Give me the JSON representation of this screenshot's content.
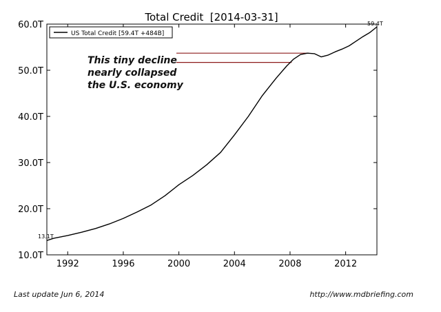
{
  "chart_data": {
    "type": "line",
    "title": "Total Credit  [2014-03-31]",
    "xlabel": "",
    "ylabel": "",
    "xlim": [
      1990.5,
      2014.25
    ],
    "ylim": [
      10,
      60
    ],
    "x_ticks": [
      1992,
      1996,
      2000,
      2004,
      2008,
      2012
    ],
    "x_tick_labels": [
      "1992",
      "1996",
      "2000",
      "2004",
      "2008",
      "2012"
    ],
    "y_ticks": [
      10,
      20,
      30,
      40,
      50,
      60
    ],
    "y_tick_labels": [
      "10.0T",
      "20.0T",
      "30.0T",
      "40.0T",
      "50.0T",
      "60.0T"
    ],
    "legend": {
      "entry": "US Total Credit [59.4T +484B]",
      "placement": "top-left"
    },
    "grid": false,
    "series": [
      {
        "name": "US Total Credit [59.4T +484B]",
        "color": "#000000",
        "x": [
          1990.5,
          1991,
          1992,
          1993,
          1994,
          1995,
          1996,
          1997,
          1998,
          1999,
          2000,
          2001,
          2002,
          2003,
          2004,
          2005,
          2006,
          2007,
          2007.75,
          2008.25,
          2008.75,
          2009.25,
          2009.75,
          2010.25,
          2010.75,
          2011.25,
          2011.75,
          2012.25,
          2012.75,
          2013.25,
          2013.75,
          2014.25
        ],
        "y": [
          13.1,
          13.6,
          14.2,
          14.9,
          15.7,
          16.7,
          17.9,
          19.3,
          20.8,
          22.8,
          25.2,
          27.2,
          29.5,
          32.2,
          36.0,
          40.0,
          44.5,
          48.3,
          50.9,
          52.4,
          53.4,
          53.7,
          53.6,
          52.9,
          53.3,
          54.0,
          54.6,
          55.3,
          56.3,
          57.3,
          58.2,
          59.4
        ]
      }
    ],
    "endpoint_labels": {
      "start": "13.1T",
      "end": "59.4T"
    },
    "annotation": {
      "lines": [
        "This tiny decline",
        "nearly collapsed",
        "the U.S. economy"
      ],
      "reference_levels": [
        53.7,
        51.7
      ],
      "color": "#8b1a1a"
    }
  },
  "footer": {
    "left": "Last update Jun  6, 2014",
    "right": "http://www.mdbriefing.com"
  }
}
